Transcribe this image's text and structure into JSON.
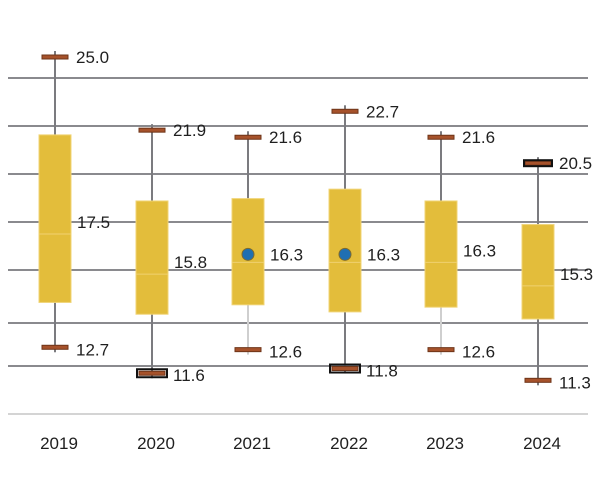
{
  "chart_data": {
    "type": "box",
    "title": "",
    "xlabel": "",
    "ylabel": "",
    "categories": [
      "2019",
      "2020",
      "2021",
      "2022",
      "2023",
      "2024"
    ],
    "series": [
      {
        "category": "2019",
        "max": 25.0,
        "q3": 21.7,
        "median": 17.5,
        "q1": 14.6,
        "min": 12.7,
        "mean": null,
        "labels": {
          "max": "25.0",
          "median": "17.5",
          "min": "12.7"
        },
        "highlight_min": false,
        "highlight_max": false
      },
      {
        "category": "2020",
        "max": 21.9,
        "q3": 18.9,
        "median": 15.8,
        "q1": 14.1,
        "min": 11.6,
        "mean": null,
        "labels": {
          "max": "21.9",
          "median": "15.8",
          "min": "11.6"
        },
        "highlight_min": true,
        "highlight_max": false
      },
      {
        "category": "2021",
        "max": 21.6,
        "q3": 19.0,
        "median": 16.3,
        "q1": 14.5,
        "min": 12.6,
        "mean": 16.3,
        "labels": {
          "max": "21.6",
          "median": "16.3",
          "min": "12.6"
        },
        "highlight_min": false,
        "highlight_max": false
      },
      {
        "category": "2022",
        "max": 22.7,
        "q3": 19.4,
        "median": 16.3,
        "q1": 14.2,
        "min": 11.8,
        "mean": 16.3,
        "labels": {
          "max": "22.7",
          "median": "16.3",
          "min": "11.8"
        },
        "highlight_min": true,
        "highlight_max": false
      },
      {
        "category": "2023",
        "max": 21.6,
        "q3": 18.9,
        "median": 16.3,
        "q1": 14.4,
        "min": 12.6,
        "mean": null,
        "labels": {
          "max": "21.6",
          "median": "16.3",
          "min": "12.6"
        },
        "highlight_min": false,
        "highlight_max": false
      },
      {
        "category": "2024",
        "max": 20.5,
        "q3": 17.9,
        "median": 15.3,
        "q1": 13.9,
        "min": 11.3,
        "mean": null,
        "labels": {
          "max": "20.5",
          "median": "15.3",
          "min": "11.3"
        },
        "highlight_min": false,
        "highlight_max": true
      }
    ],
    "grid": true,
    "legend": "none"
  }
}
